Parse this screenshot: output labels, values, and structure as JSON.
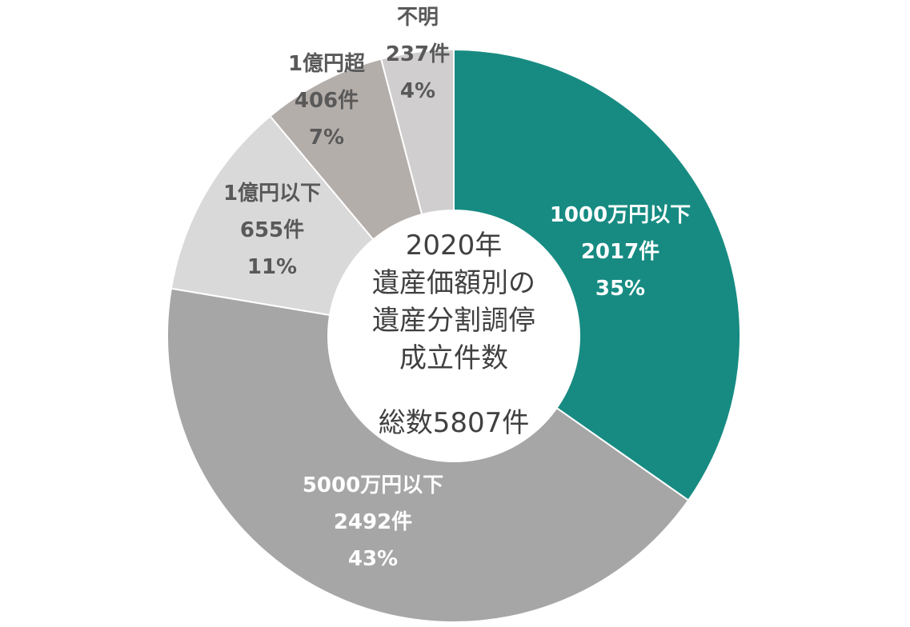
{
  "chart_data": {
    "type": "pie",
    "donut": true,
    "center_lines": [
      "2020年",
      "遺産価額別の",
      "遺産分割調停",
      "成立件数"
    ],
    "center_total": "総数5807件",
    "slices": [
      {
        "name": "1000万円以下",
        "count_label": "2017件",
        "pct_label": "35%",
        "value": 2017,
        "color": "#178b82",
        "text_color": "#ffffff"
      },
      {
        "name": "5000万円以下",
        "count_label": "2492件",
        "pct_label": "43%",
        "value": 2492,
        "color": "#a6a6a6",
        "text_color": "#ffffff"
      },
      {
        "name": "1億円以下",
        "count_label": "655件",
        "pct_label": "11%",
        "value": 655,
        "color": "#d9d9d9",
        "text_color": "#595959"
      },
      {
        "name": "1億円超",
        "count_label": "406件",
        "pct_label": "7%",
        "value": 406,
        "color": "#b4aeab",
        "text_color": "#595959"
      },
      {
        "name": "不明",
        "count_label": "237件",
        "pct_label": "4%",
        "value": 237,
        "color": "#d0cecf",
        "text_color": "#595959"
      }
    ]
  }
}
